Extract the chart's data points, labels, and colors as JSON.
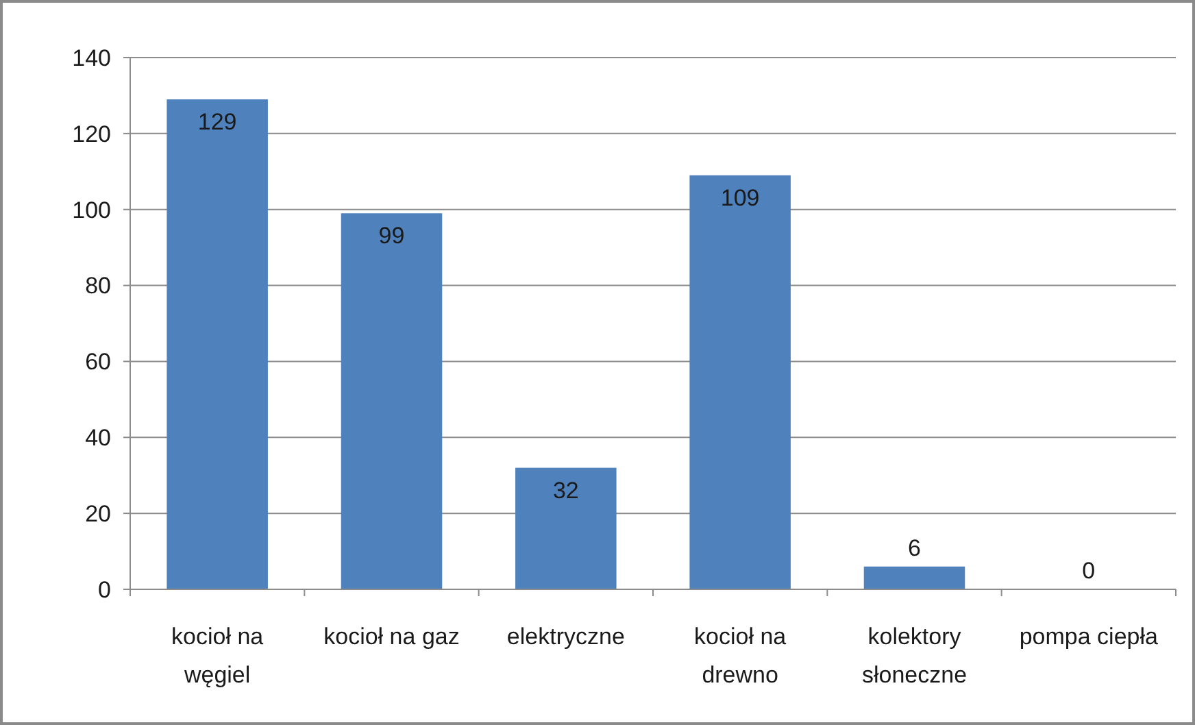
{
  "chart_data": {
    "type": "bar",
    "categories": [
      "kocioł na węgiel",
      "kocioł na gaz",
      "elektryczne",
      "kocioł na drewno",
      "kolektory słoneczne",
      "pompa ciepła"
    ],
    "values": [
      129,
      99,
      32,
      109,
      6,
      0
    ],
    "color": "#4f81bd",
    "data_labels": true,
    "ylim": [
      0,
      140
    ],
    "yticks": [
      0,
      20,
      40,
      60,
      80,
      100,
      120,
      140
    ],
    "grid": "y"
  }
}
